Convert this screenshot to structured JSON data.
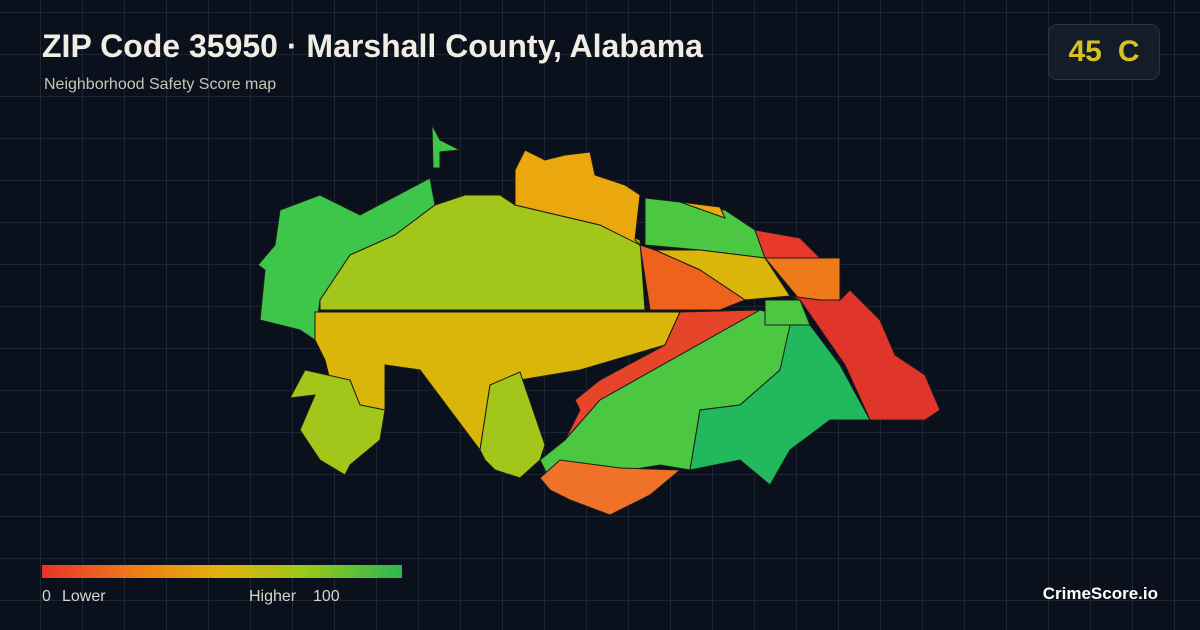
{
  "header": {
    "title": "ZIP Code 35950 · Marshall County, Alabama",
    "subtitle": "Neighborhood Safety Score map"
  },
  "score": {
    "value": 45,
    "grade": "C"
  },
  "legend": {
    "min": 0,
    "min_label": "Lower",
    "max_label": "Higher",
    "max": 100
  },
  "brand": "CrimeScore.io"
}
